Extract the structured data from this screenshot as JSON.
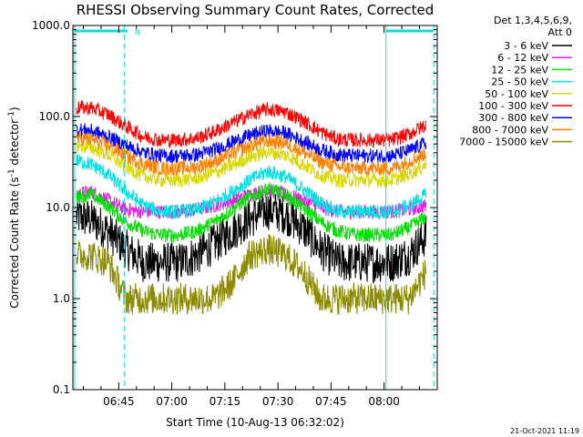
{
  "chart_data": {
    "type": "line",
    "title": "RHESSI Observing Summary Count Rates, Corrected",
    "xlabel": "Start Time (10-Aug-13 06:32:02)",
    "ylabel_main": "Corrected Count Rate (s",
    "ylabel_sup1": "-1",
    "ylabel_mid": " detector",
    "ylabel_sup2": "-1",
    "ylabel_end": ")",
    "y_scale": "log",
    "ylim": [
      0.1,
      1000
    ],
    "xlim_minutes": [
      0,
      103
    ],
    "x_ticks": [
      {
        "minute": 12.97,
        "label": "06:45"
      },
      {
        "minute": 27.97,
        "label": "07:00"
      },
      {
        "minute": 42.97,
        "label": "07:15"
      },
      {
        "minute": 57.97,
        "label": "07:30"
      },
      {
        "minute": 72.97,
        "label": "07:45"
      },
      {
        "minute": 87.97,
        "label": "08:00"
      }
    ],
    "y_ticks": [
      {
        "value": 0.1,
        "label": "0.1"
      },
      {
        "value": 1,
        "label": "1.0"
      },
      {
        "value": 10,
        "label": "10.0"
      },
      {
        "value": 100,
        "label": "100.0"
      },
      {
        "value": 1000,
        "label": "1000.0"
      }
    ],
    "legend_header_1": "Det 1,3,4,5,6,9,",
    "legend_header_2": "Att 0",
    "legend_placement": "right",
    "series": [
      {
        "name": "3 - 6 keV",
        "color": "#000000",
        "x": [
          1,
          5,
          10,
          15,
          20,
          25,
          30,
          35,
          40,
          45,
          50,
          55,
          60,
          65,
          70,
          75,
          80,
          85,
          90,
          95,
          100
        ],
        "y": [
          8,
          7.5,
          5.5,
          3.5,
          2.5,
          2.5,
          2.5,
          3,
          4,
          5.5,
          7.5,
          9.5,
          8.5,
          6,
          3.5,
          2.5,
          2.5,
          2.5,
          2.5,
          3,
          5
        ]
      },
      {
        "name": "6 - 12 keV",
        "color": "#e020e0",
        "x": [
          1,
          5,
          10,
          15,
          20,
          25,
          30,
          35,
          40,
          45,
          50,
          55,
          60,
          65,
          70,
          75,
          80,
          85,
          90,
          95,
          100
        ],
        "y": [
          14,
          15,
          12,
          9.5,
          9,
          9,
          9,
          9.5,
          10.5,
          12,
          14,
          15.5,
          14,
          12,
          10,
          9,
          9,
          9,
          9,
          9.5,
          10.5
        ]
      },
      {
        "name": "12 - 25 keV",
        "color": "#00e000",
        "x": [
          1,
          5,
          10,
          15,
          20,
          25,
          30,
          35,
          40,
          45,
          50,
          55,
          60,
          65,
          70,
          75,
          80,
          85,
          90,
          95,
          100
        ],
        "y": [
          13,
          14,
          10.5,
          7,
          5.5,
          5,
          5,
          5.5,
          7,
          9.5,
          13,
          16,
          14,
          10,
          7,
          5.5,
          5,
          5,
          5,
          6,
          8
        ]
      },
      {
        "name": "25 - 50 keV",
        "color": "#00e0e0",
        "x": [
          1,
          5,
          10,
          15,
          20,
          25,
          30,
          35,
          40,
          45,
          50,
          55,
          60,
          65,
          70,
          75,
          80,
          85,
          90,
          95,
          100
        ],
        "y": [
          33,
          30,
          23,
          15,
          10.5,
          9,
          9,
          9.5,
          11.5,
          15,
          20,
          25,
          22,
          16,
          11.5,
          9,
          9,
          9,
          9,
          10.5,
          14
        ]
      },
      {
        "name": "50 - 100 keV",
        "color": "#d8d800",
        "x": [
          1,
          5,
          10,
          15,
          20,
          25,
          30,
          35,
          40,
          45,
          50,
          55,
          60,
          65,
          70,
          75,
          80,
          85,
          90,
          95,
          100
        ],
        "y": [
          48,
          46,
          38,
          28,
          22,
          20,
          20,
          21,
          24,
          29,
          36,
          41,
          38,
          30,
          23,
          20,
          20,
          20,
          20,
          23,
          30
        ]
      },
      {
        "name": "100 - 300 keV",
        "color": "#ff0000",
        "x": [
          1,
          5,
          10,
          15,
          20,
          25,
          30,
          35,
          40,
          45,
          50,
          55,
          60,
          65,
          70,
          75,
          80,
          85,
          90,
          95,
          100
        ],
        "y": [
          125,
          125,
          105,
          78,
          60,
          55,
          55,
          58,
          68,
          85,
          105,
          120,
          113,
          90,
          68,
          56,
          55,
          55,
          55,
          64,
          82
        ]
      },
      {
        "name": "300 - 800 keV",
        "color": "#0000ff",
        "x": [
          1,
          5,
          10,
          15,
          20,
          25,
          30,
          35,
          40,
          45,
          50,
          55,
          60,
          65,
          70,
          75,
          80,
          85,
          90,
          95,
          100
        ],
        "y": [
          72,
          70,
          60,
          48,
          40,
          37,
          37,
          38,
          43,
          52,
          62,
          70,
          66,
          54,
          43,
          38,
          37,
          37,
          37,
          42,
          52
        ]
      },
      {
        "name": "800 - 7000 keV",
        "color": "#ff8000",
        "x": [
          1,
          5,
          10,
          15,
          20,
          25,
          30,
          35,
          40,
          45,
          50,
          55,
          60,
          65,
          70,
          75,
          80,
          85,
          90,
          95,
          100
        ],
        "y": [
          58,
          56,
          48,
          37,
          30,
          27,
          27,
          28,
          32,
          39,
          48,
          54,
          51,
          41,
          32,
          28,
          27,
          27,
          27,
          32,
          40
        ]
      },
      {
        "name": "7000 - 15000 keV",
        "color": "#8b8b00",
        "x": [
          1,
          5,
          10,
          15,
          20,
          25,
          30,
          35,
          40,
          45,
          50,
          55,
          60,
          65,
          70,
          75,
          80,
          85,
          90,
          95,
          100
        ],
        "y": [
          3,
          3,
          2.5,
          1,
          1,
          1,
          1,
          1,
          1,
          1.5,
          3,
          3.5,
          3,
          2,
          1,
          1,
          1,
          1,
          1,
          1,
          2
        ]
      }
    ],
    "attenuator_bars": [
      {
        "from_minute": 0.5,
        "to_minute": 15.5,
        "level": 870
      },
      {
        "from_minute": 88.5,
        "to_minute": 102,
        "level": 870
      }
    ],
    "annotations": [
      {
        "text": "N",
        "minute": 17.5,
        "value": 870,
        "color": "#00e0e0"
      }
    ],
    "vertical_lines": [
      {
        "minute": 0.5,
        "style": "solid",
        "color": "#00e0e0"
      },
      {
        "minute": 14.5,
        "style": "dashed",
        "color": "#00e0e0"
      },
      {
        "minute": 88.5,
        "style": "solid",
        "color": "#00e0e0"
      },
      {
        "minute": 102,
        "style": "dashed",
        "color": "#00e0e0"
      }
    ],
    "timestamp": "21-Oct-2021 11:19"
  }
}
